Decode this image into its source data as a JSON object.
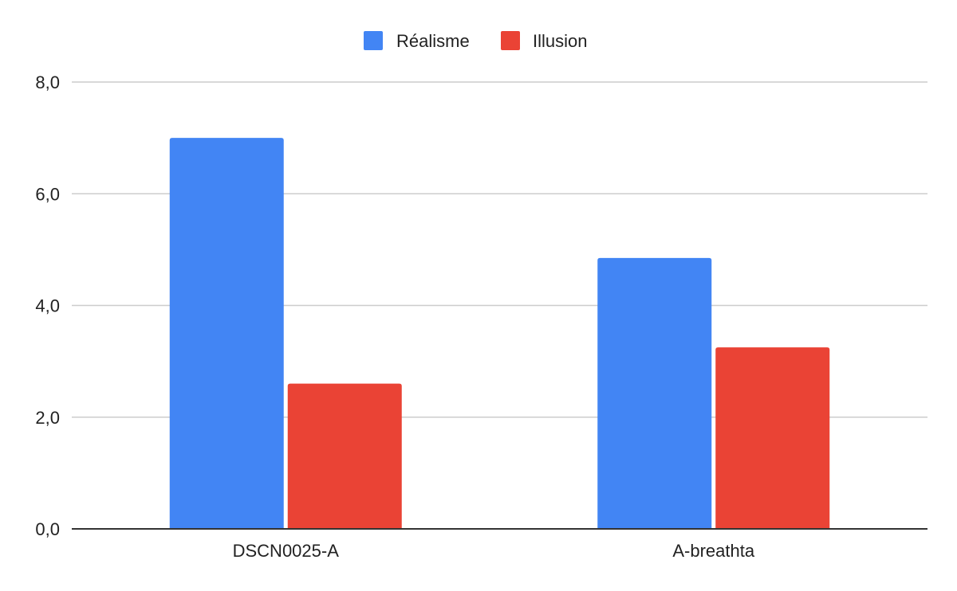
{
  "chart_data": {
    "type": "bar",
    "categories": [
      "DSCN0025-A",
      "A-breathta"
    ],
    "series": [
      {
        "name": "Réalisme",
        "values": [
          7.0,
          4.85
        ],
        "color": "#4285F4"
      },
      {
        "name": "Illusion",
        "values": [
          2.6,
          3.25
        ],
        "color": "#EA4335"
      }
    ],
    "title": "",
    "xlabel": "",
    "ylabel": "",
    "ylim": [
      0,
      8
    ],
    "yticks": [
      0,
      2,
      4,
      6,
      8
    ],
    "ytick_labels": [
      "0,0",
      "2,0",
      "4,0",
      "6,0",
      "8,0"
    ],
    "grid": true,
    "legend_position": "top-center",
    "gridline_color": "#cccccc",
    "axis_color": "#333333"
  }
}
